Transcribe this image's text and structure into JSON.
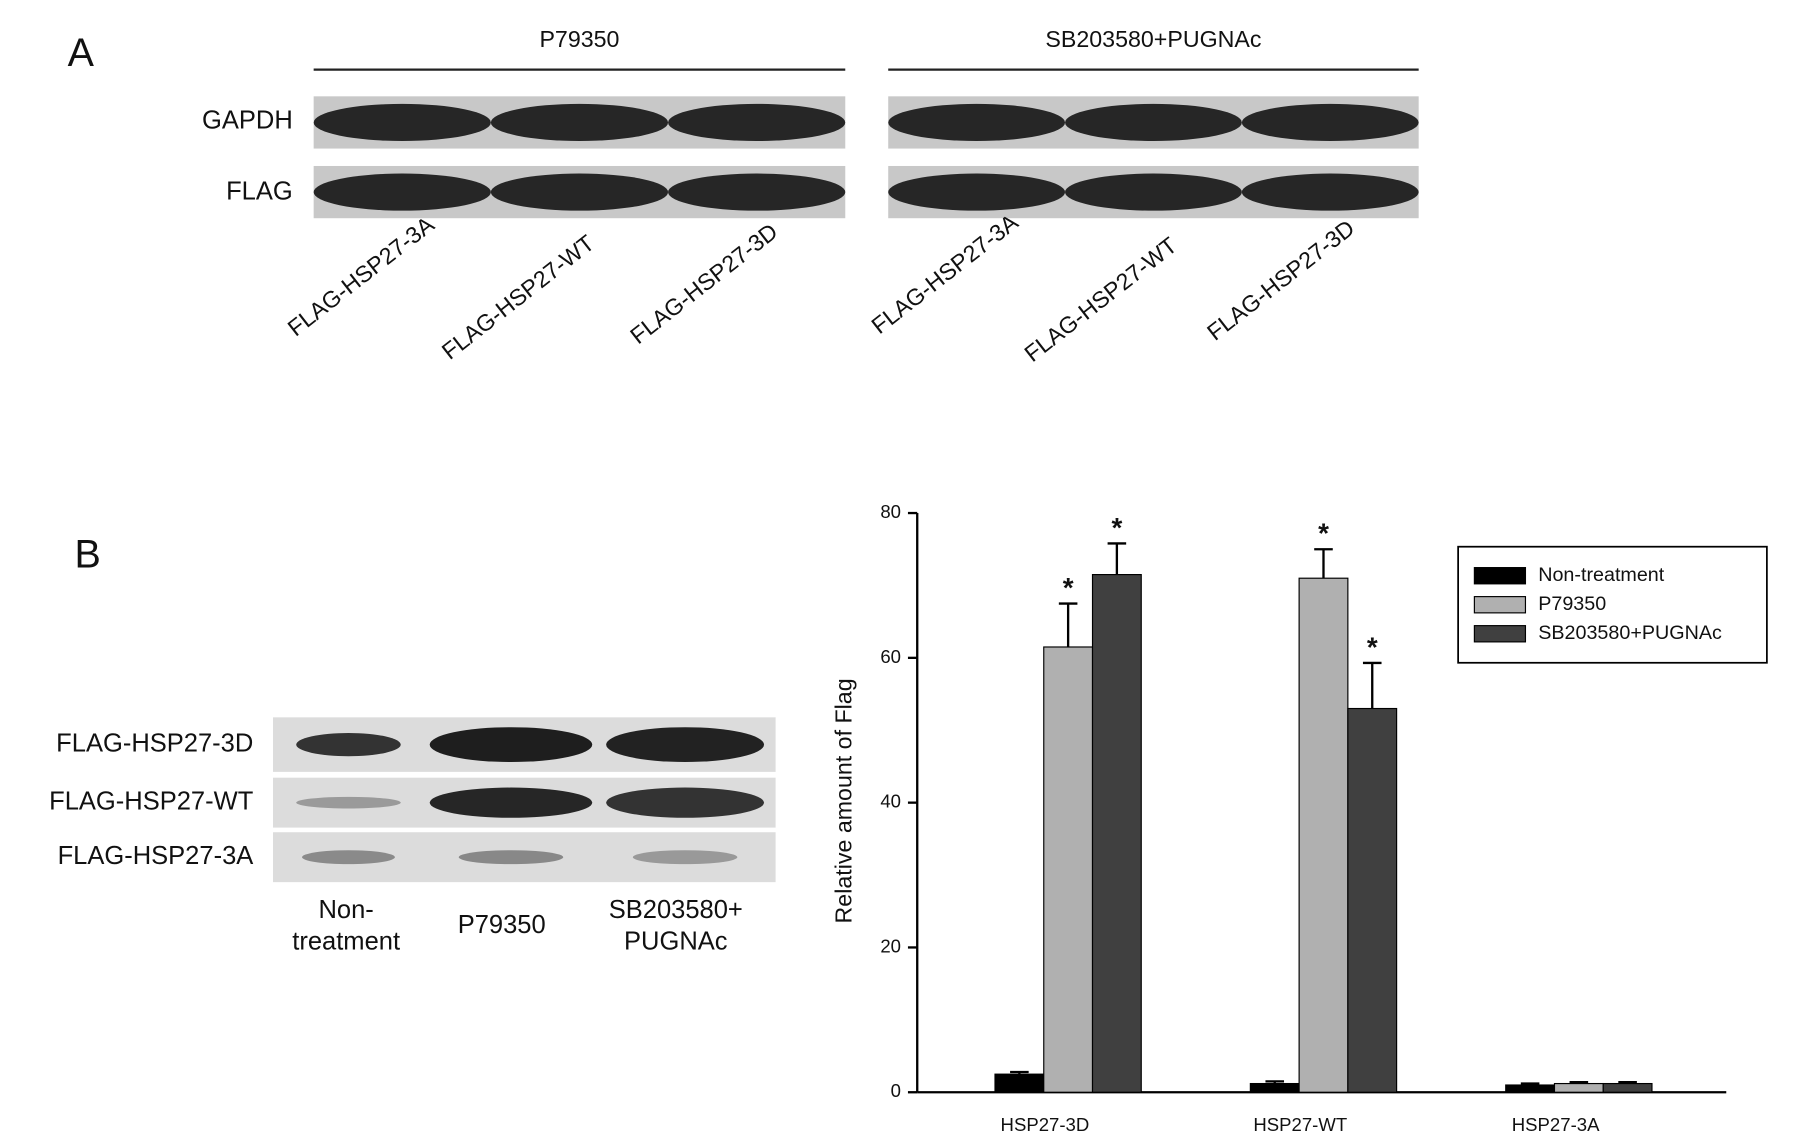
{
  "panel_a": {
    "label": "A",
    "groups": [
      "P79350",
      "SB203580+PUGNAc"
    ],
    "rows": [
      "GAPDH",
      "FLAG"
    ],
    "lanes": [
      "FLAG-HSP27-3A",
      "FLAG-HSP27-WT",
      "FLAG-HSP27-3D",
      "FLAG-HSP27-3A",
      "FLAG-HSP27-WT",
      "FLAG-HSP27-3D"
    ]
  },
  "panel_b": {
    "label": "B",
    "rows": [
      "FLAG-HSP27-3D",
      "FLAG-HSP27-WT",
      "FLAG-HSP27-3A"
    ],
    "lanes": [
      [
        "Non-",
        "treatment"
      ],
      [
        "P79350"
      ],
      [
        "SB203580+",
        "PUGNAc"
      ]
    ]
  },
  "chart_data": {
    "type": "bar",
    "y_label": "Relative amount of Flag",
    "categories": [
      "HSP27-3D",
      "HSP27-WT",
      "HSP27-3A"
    ],
    "series": [
      {
        "name": "Non-treatment",
        "color": "#000000",
        "values": [
          2.5,
          1.2,
          1.0
        ],
        "errors": [
          0.3,
          0.3,
          0.2
        ],
        "annotations": [
          null,
          null,
          null
        ]
      },
      {
        "name": "P79350",
        "color": "#b0b0b0",
        "values": [
          61.5,
          71,
          1.2
        ],
        "errors": [
          6,
          4,
          0.2
        ],
        "annotations": [
          "*",
          "*",
          null
        ]
      },
      {
        "name": "SB203580+PUGNAc",
        "color": "#404040",
        "values": [
          71.5,
          53,
          1.2
        ],
        "errors": [
          4.3,
          6.3,
          0.2
        ],
        "annotations": [
          "*",
          "*",
          null
        ]
      }
    ],
    "ylim": [
      0,
      80
    ],
    "yticks": [
      0,
      20,
      40,
      60,
      80
    ],
    "legend": "top-right"
  }
}
